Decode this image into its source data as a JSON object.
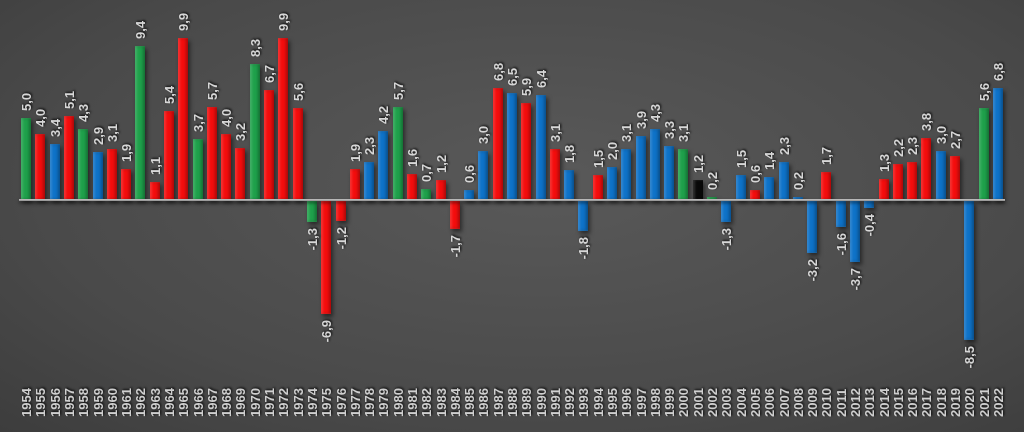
{
  "chart_data": {
    "type": "bar",
    "title": "",
    "xlabel": "",
    "ylabel": "",
    "legend": "none",
    "grid": "off",
    "ylim": [
      -10,
      10
    ],
    "decimal_separator": ",",
    "categories": [
      1954,
      1955,
      1956,
      1957,
      1958,
      1959,
      1960,
      1961,
      1962,
      1963,
      1964,
      1965,
      1966,
      1967,
      1968,
      1969,
      1970,
      1971,
      1972,
      1973,
      1974,
      1975,
      1976,
      1977,
      1978,
      1979,
      1980,
      1981,
      1982,
      1983,
      1984,
      1985,
      1986,
      1987,
      1988,
      1989,
      1990,
      1991,
      1992,
      1993,
      1994,
      1995,
      1996,
      1997,
      1998,
      1999,
      2000,
      2001,
      2002,
      2003,
      2004,
      2005,
      2006,
      2007,
      2008,
      2009,
      2010,
      2011,
      2012,
      2013,
      2014,
      2015,
      2016,
      2017,
      2018,
      2019,
      2020,
      2021,
      2022
    ],
    "values": [
      5.0,
      4.0,
      3.4,
      5.1,
      4.3,
      2.9,
      3.1,
      1.9,
      9.4,
      1.1,
      5.4,
      9.9,
      3.7,
      5.7,
      4.0,
      3.2,
      8.3,
      6.7,
      9.9,
      5.6,
      -1.3,
      -6.9,
      -1.2,
      1.9,
      2.3,
      4.2,
      5.7,
      1.6,
      0.7,
      1.2,
      -1.7,
      0.6,
      3.0,
      6.8,
      6.5,
      5.9,
      6.4,
      3.1,
      1.8,
      -1.8,
      1.5,
      2.0,
      3.1,
      3.9,
      4.3,
      3.3,
      3.1,
      1.2,
      0.2,
      -1.3,
      1.5,
      0.6,
      1.4,
      2.3,
      0.2,
      -3.2,
      1.7,
      -1.6,
      -3.7,
      -0.4,
      1.3,
      2.2,
      2.3,
      3.8,
      3.0,
      2.7,
      -8.5,
      5.6,
      6.8
    ],
    "labels": [
      "5,0",
      "4,0",
      "3,4",
      "5,1",
      "4,3",
      "2,9",
      "3,1",
      "1,9",
      "9,4",
      "1,1",
      "5,4",
      "9,9",
      "3,7",
      "5,7",
      "4,0",
      "3,2",
      "8,3",
      "6,7",
      "9,9",
      "5,6",
      "-1,3",
      "-6,9",
      "-1,2",
      "1,9",
      "2,3",
      "4,2",
      "5,7",
      "1,6",
      "0,7",
      "1,2",
      "-1,7",
      "0,6",
      "3,0",
      "6,8",
      "6,5",
      "5,9",
      "6,4",
      "3,1",
      "1,8",
      "-1,8",
      "1,5",
      "2,0",
      "3,1",
      "3,9",
      "4,3",
      "3,3",
      "3,1",
      "1,2",
      "0,2",
      "-1,3",
      "1,5",
      "0,6",
      "1,4",
      "2,3",
      "0,2",
      "-3,2",
      "1,7",
      "-1,6",
      "-3,7",
      "-0,4",
      "1,3",
      "2,2",
      "2,3",
      "3,8",
      "3,0",
      "2,7",
      "-8,5",
      "5,6",
      "6,8"
    ],
    "bar_colors": [
      "green",
      "red",
      "blue",
      "red",
      "green",
      "blue",
      "red",
      "red",
      "green",
      "red",
      "red",
      "red",
      "green",
      "red",
      "red",
      "red",
      "green",
      "red",
      "red",
      "red",
      "green",
      "red",
      "red",
      "red",
      "blue",
      "blue",
      "green",
      "red",
      "green",
      "red",
      "red",
      "blue",
      "blue",
      "red",
      "blue",
      "red",
      "blue",
      "red",
      "blue",
      "blue",
      "red",
      "blue",
      "blue",
      "blue",
      "blue",
      "blue",
      "green",
      "black",
      "green",
      "blue",
      "blue",
      "red",
      "blue",
      "blue",
      "blue",
      "blue",
      "red",
      "blue",
      "blue",
      "blue",
      "red",
      "red",
      "red",
      "red",
      "blue",
      "red",
      "blue",
      "green",
      "blue"
    ]
  },
  "palette": {
    "green": "#1fa14b",
    "red": "#f40d0d",
    "blue": "#0e72c8",
    "black": "#0a0a0a"
  },
  "style": {
    "label_color": "#d7d7d7",
    "axis_line_color": "#a3a3a3",
    "background_center": "#595959",
    "background_edge": "#1e1e1e"
  }
}
